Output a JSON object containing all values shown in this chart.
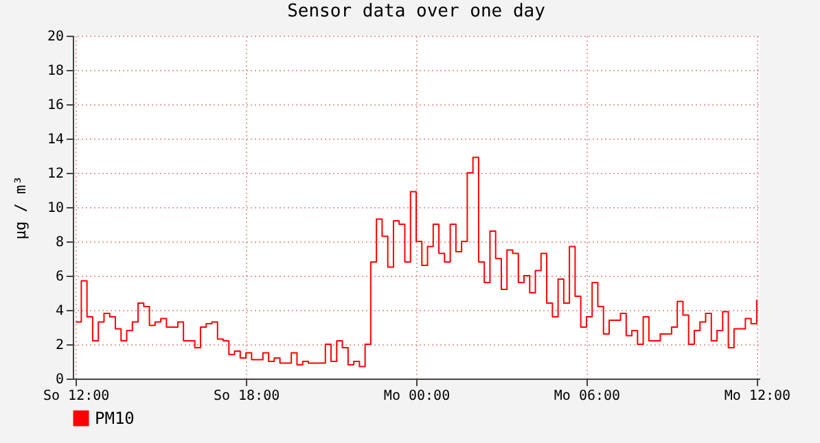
{
  "chart_data": {
    "type": "step",
    "title": "Sensor data over one day",
    "ylabel": "µg / m³",
    "categories": [
      "So 12:00",
      null,
      null,
      null,
      null,
      null,
      null,
      null,
      null,
      null,
      null,
      null,
      null,
      null,
      null,
      null,
      null,
      null,
      null,
      null,
      null,
      null,
      null,
      null,
      null,
      null,
      null,
      null,
      null,
      null,
      "So 18:00",
      null,
      null,
      null,
      null,
      null,
      null,
      null,
      null,
      null,
      null,
      null,
      null,
      null,
      null,
      null,
      null,
      null,
      null,
      null,
      null,
      null,
      null,
      null,
      null,
      null,
      null,
      null,
      null,
      null,
      "Mo 00:00",
      null,
      null,
      null,
      null,
      null,
      null,
      null,
      null,
      null,
      null,
      null,
      null,
      null,
      null,
      null,
      null,
      null,
      null,
      null,
      null,
      null,
      null,
      null,
      null,
      null,
      null,
      null,
      null,
      null,
      "Mo 06:00",
      null,
      null,
      null,
      null,
      null,
      null,
      null,
      null,
      null,
      null,
      null,
      null,
      null,
      null,
      null,
      null,
      null,
      null,
      null,
      null,
      null,
      null,
      null,
      null,
      null,
      null,
      null,
      null,
      null,
      "Mo 12:00"
    ],
    "ylim": [
      0,
      20
    ],
    "yticks": [
      0,
      2,
      4,
      6,
      8,
      10,
      12,
      14,
      16,
      18,
      20
    ],
    "grid": true,
    "legend": "bottom left",
    "line_style": "solid",
    "marker": "none",
    "series": [
      {
        "name": "PM10",
        "color": "#ff0000",
        "values": [
          3.3,
          5.7,
          3.6,
          2.2,
          3.3,
          3.8,
          3.6,
          2.9,
          2.2,
          2.8,
          3.3,
          4.4,
          4.2,
          3.1,
          3.3,
          3.5,
          3.0,
          3.0,
          3.3,
          2.2,
          2.2,
          1.8,
          3.0,
          3.2,
          3.3,
          2.3,
          2.2,
          1.4,
          1.6,
          1.2,
          1.5,
          1.1,
          1.1,
          1.5,
          1.0,
          1.2,
          0.9,
          0.9,
          1.5,
          0.8,
          1.0,
          0.9,
          0.9,
          0.9,
          2.0,
          1.0,
          2.2,
          1.8,
          0.8,
          1.0,
          0.7,
          2.0,
          6.8,
          9.3,
          8.3,
          6.5,
          9.2,
          9.0,
          6.8,
          10.9,
          8.0,
          6.6,
          7.7,
          9.0,
          7.3,
          6.8,
          9.0,
          7.4,
          8.0,
          12.0,
          12.9,
          6.8,
          5.6,
          8.6,
          7.0,
          5.2,
          7.5,
          7.3,
          5.6,
          6.0,
          5.0,
          6.3,
          7.3,
          4.4,
          3.6,
          5.8,
          4.4,
          7.7,
          4.8,
          3.0,
          3.6,
          5.6,
          4.2,
          2.6,
          3.4,
          3.4,
          3.8,
          2.5,
          2.8,
          2.0,
          3.6,
          2.2,
          2.2,
          2.6,
          2.6,
          3.0,
          4.5,
          3.7,
          2.0,
          2.8,
          3.3,
          3.8,
          2.2,
          2.8,
          3.9,
          1.8,
          2.9,
          2.9,
          3.5,
          3.2,
          4.6
        ]
      }
    ]
  }
}
